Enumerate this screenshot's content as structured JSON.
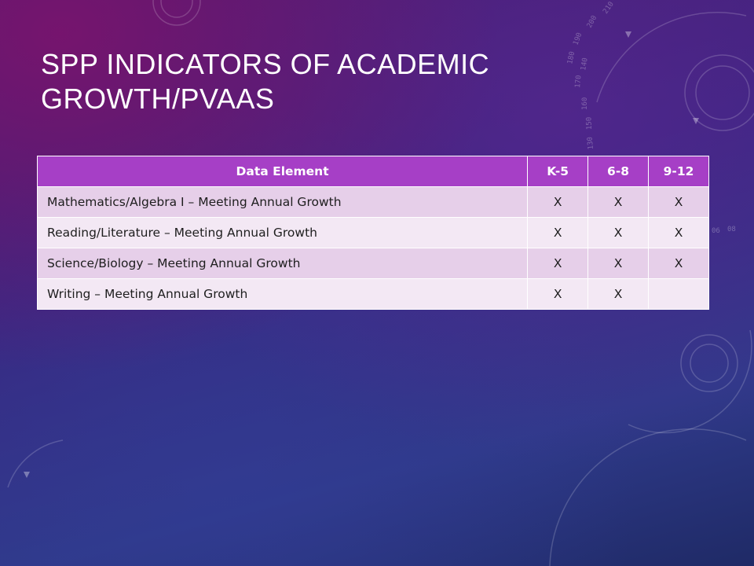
{
  "slide": {
    "title_line1": "SPP INDICATORS OF ACADEMIC",
    "title_line2": "GROWTH/PVAAS"
  },
  "table": {
    "headers": {
      "element": "Data Element",
      "k5": "K-5",
      "g68": "6-8",
      "g912": "9-12"
    },
    "rows": [
      {
        "element": "Mathematics/Algebra I – Meeting Annual Growth",
        "k5": "X",
        "g68": "X",
        "g912": "X"
      },
      {
        "element": "Reading/Literature – Meeting Annual Growth",
        "k5": "X",
        "g68": "X",
        "g912": "X"
      },
      {
        "element": "Science/Biology – Meeting Annual Growth",
        "k5": "X",
        "g68": "X",
        "g912": "X"
      },
      {
        "element": "Writing – Meeting Annual Growth",
        "k5": "X",
        "g68": "X",
        "g912": ""
      }
    ]
  },
  "decor_numbers": [
    "190",
    "200",
    "210",
    "180",
    "170",
    "160",
    "150",
    "140",
    "130",
    "06",
    "08"
  ],
  "colors": {
    "header_bg": "#a63fc6",
    "row_odd_bg": "#e6cfe9",
    "row_even_bg": "#f3e8f4",
    "title_text": "#ffffff"
  }
}
